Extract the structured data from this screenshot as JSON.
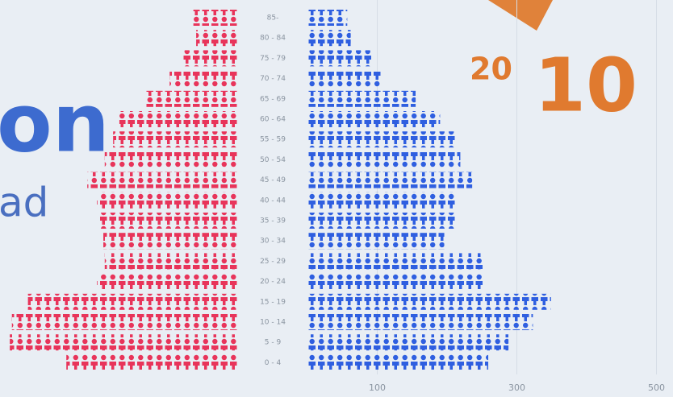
{
  "chart_data": {
    "type": "pyramid",
    "categories": [
      "85-",
      "80 - 84",
      "75 - 79",
      "70 - 74",
      "65 - 69",
      "60 - 64",
      "55 - 59",
      "50 - 54",
      "45 - 49",
      "40 - 44",
      "35 - 39",
      "30 - 34",
      "25 - 29",
      "20 - 24",
      "15 - 19",
      "10 - 14",
      "5 - 9",
      "0 - 4"
    ],
    "series": [
      {
        "color": "#e8345a",
        "side": "left",
        "values": [
          64,
          60,
          81,
          98,
          133,
          170,
          179,
          191,
          216,
          202,
          200,
          193,
          191,
          202,
          301,
          324,
          327,
          246
        ]
      },
      {
        "color": "#2f5fe0",
        "side": "right",
        "values": [
          57,
          62,
          94,
          105,
          155,
          190,
          213,
          219,
          236,
          213,
          213,
          196,
          253,
          253,
          349,
          323,
          288,
          259
        ]
      }
    ],
    "xlim": [
      0,
      500
    ],
    "xticks": [
      100,
      300,
      500
    ],
    "grid": true,
    "texts": {
      "word": "on",
      "subword": "ad",
      "year_small": "20",
      "year_big": "10"
    }
  }
}
